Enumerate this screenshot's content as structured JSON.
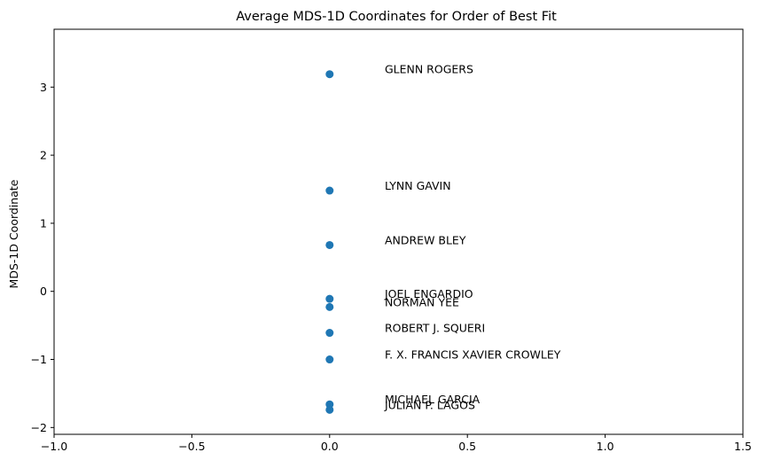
{
  "chart_data": {
    "type": "scatter",
    "title": "Average MDS-1D Coordinates for Order of Best Fit",
    "xlabel": "",
    "ylabel": "MDS-1D Coordinate",
    "xlim": [
      -1.0,
      1.5
    ],
    "ylim": [
      -2.1,
      3.85
    ],
    "x_ticks": [
      -1.0,
      -0.5,
      0.0,
      0.5,
      1.0,
      1.5
    ],
    "x_tick_labels": [
      "−1.0",
      "−0.5",
      "0.0",
      "0.5",
      "1.0",
      "1.5"
    ],
    "y_ticks": [
      -2,
      -1,
      0,
      1,
      2,
      3
    ],
    "y_tick_labels": [
      "−2",
      "−1",
      "0",
      "1",
      "2",
      "3"
    ],
    "grid": false,
    "marker_color": "#1f77b4",
    "label_x_offset": 0.2,
    "points": [
      {
        "label": "GLENN ROGERS",
        "x": 0.0,
        "y": 3.19
      },
      {
        "label": "LYNN GAVIN",
        "x": 0.0,
        "y": 1.48
      },
      {
        "label": "ANDREW BLEY",
        "x": 0.0,
        "y": 0.68
      },
      {
        "label": "JOEL ENGARDIO",
        "x": 0.0,
        "y": -0.11
      },
      {
        "label": "NORMAN YEE",
        "x": 0.0,
        "y": -0.23
      },
      {
        "label": "ROBERT J. SQUERI",
        "x": 0.0,
        "y": -0.61
      },
      {
        "label": "F. X. FRANCIS XAVIER CROWLEY",
        "x": 0.0,
        "y": -1.0
      },
      {
        "label": "MICHAEL GARCIA",
        "x": 0.0,
        "y": -1.66
      },
      {
        "label": "JULIAN P. LAGOS",
        "x": 0.0,
        "y": -1.74
      }
    ]
  }
}
